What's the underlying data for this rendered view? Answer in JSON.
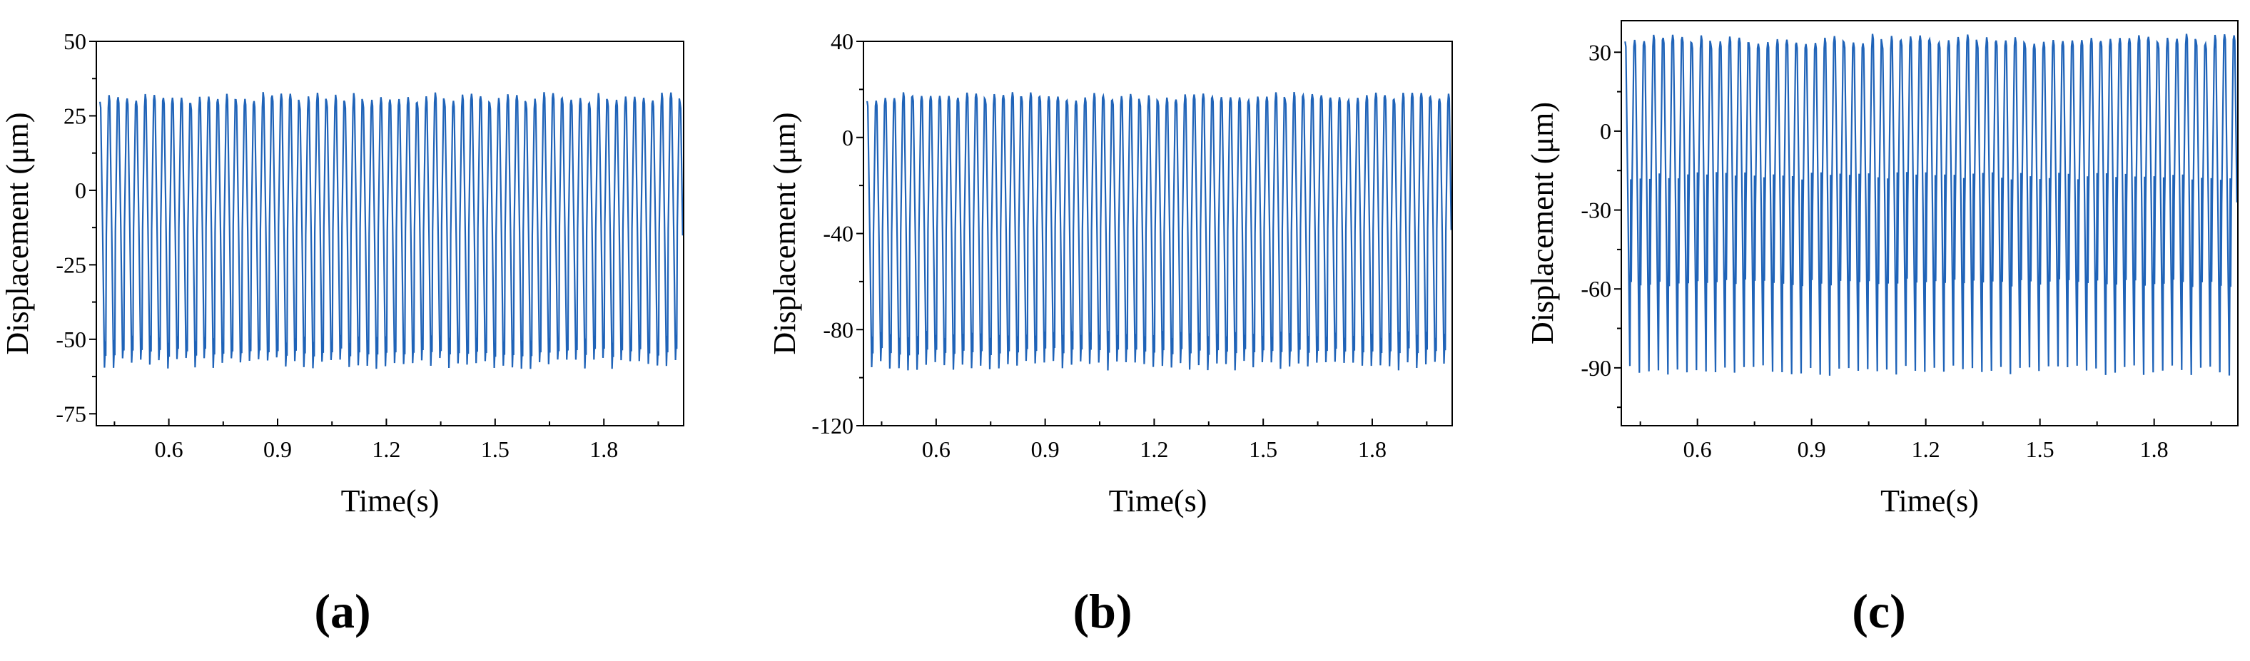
{
  "figure": {
    "line_color": "#1f63b8",
    "axis_color": "#000000",
    "background": "#ffffff"
  },
  "chart_data": [
    {
      "type": "line",
      "panel_label": "(a)",
      "xlabel": "Time(s)",
      "ylabel": "Displacement (μm)",
      "xlim": [
        0.4,
        2.02
      ],
      "ylim": [
        -79,
        50
      ],
      "x_ticks": [
        0.6,
        0.9,
        1.2,
        1.5,
        1.8
      ],
      "y_ticks": [
        50,
        25,
        0,
        -25,
        -50,
        -75
      ],
      "series": [
        {
          "period_s": 0.025,
          "t_start": 0.41,
          "t_end": 2.02,
          "peak_um": 31,
          "trough_um": -58,
          "secondary_dip_um": -50
        }
      ]
    },
    {
      "type": "line",
      "panel_label": "(b)",
      "xlabel": "Time(s)",
      "ylabel": "Displacement (μm)",
      "xlim": [
        0.4,
        2.02
      ],
      "ylim": [
        -120,
        40
      ],
      "x_ticks": [
        0.6,
        0.9,
        1.2,
        1.5,
        1.8
      ],
      "y_ticks": [
        40,
        0,
        -40,
        -80,
        -120
      ],
      "series": [
        {
          "period_s": 0.025,
          "t_start": 0.41,
          "t_end": 2.02,
          "peak_um": 17,
          "trough_um": -95,
          "secondary_dip_um": -82
        }
      ]
    },
    {
      "type": "line",
      "panel_label": "(c)",
      "xlabel": "Time(s)",
      "ylabel": "Displacement (μm)",
      "xlim": [
        0.4,
        2.02
      ],
      "ylim": [
        -112,
        42
      ],
      "x_ticks": [
        0.6,
        0.9,
        1.2,
        1.5,
        1.8
      ],
      "y_ticks": [
        30,
        0,
        -30,
        -60,
        -90
      ],
      "series": [
        {
          "period_s": 0.025,
          "t_start": 0.41,
          "t_end": 2.02,
          "peak_um": 35,
          "trough_um": -91,
          "secondary_dip_um": -17
        }
      ]
    }
  ]
}
